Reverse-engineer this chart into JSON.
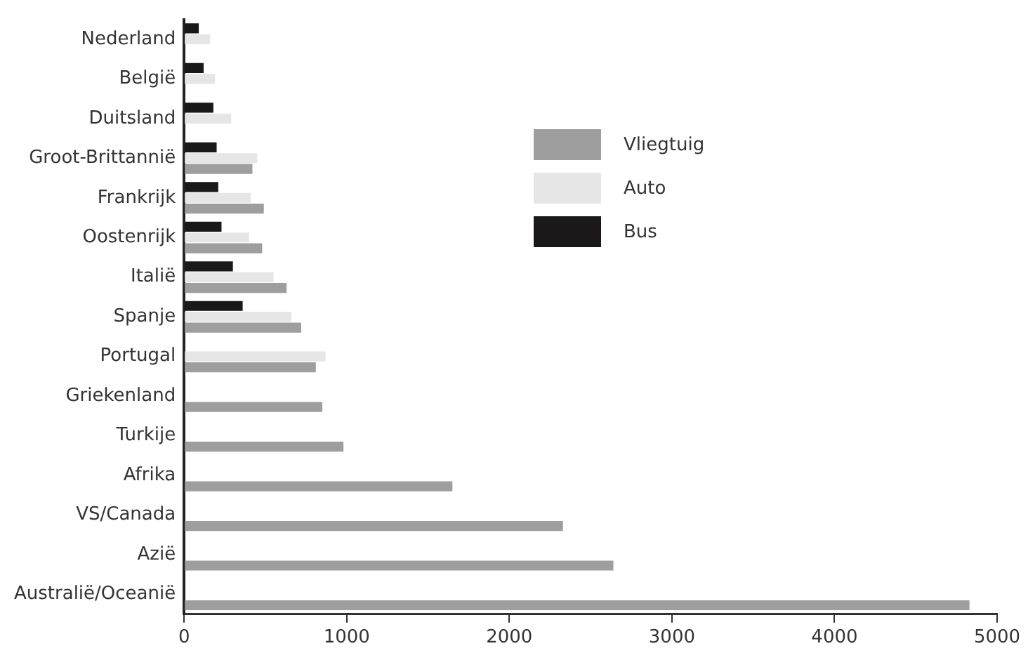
{
  "chart_data": {
    "type": "bar",
    "orientation": "horizontal",
    "categories": [
      "Nederland",
      "België",
      "Duitsland",
      "Groot-Brittannië",
      "Frankrijk",
      "Oostenrijk",
      "Italië",
      "Spanje",
      "Portugal",
      "Griekenland",
      "Turkije",
      "Afrika",
      "VS/Canada",
      "Azië",
      "Australië/Oceanië"
    ],
    "series": [
      {
        "name": "Bus",
        "color": "#1a1818",
        "values": [
          90,
          120,
          180,
          200,
          210,
          230,
          300,
          360,
          null,
          null,
          null,
          null,
          null,
          null,
          null
        ]
      },
      {
        "name": "Auto",
        "color": "#e6e6e6",
        "values": [
          160,
          190,
          290,
          450,
          410,
          400,
          550,
          660,
          870,
          null,
          null,
          null,
          null,
          null,
          null
        ]
      },
      {
        "name": "Vliegtuig",
        "color": "#9e9e9e",
        "values": [
          null,
          null,
          null,
          420,
          490,
          480,
          630,
          720,
          810,
          850,
          980,
          1650,
          2330,
          2640,
          4830
        ]
      }
    ],
    "xlim": [
      0,
      5000
    ],
    "xticks": [
      0,
      1000,
      2000,
      3000,
      4000,
      5000
    ],
    "grid": false,
    "legend": "top"
  }
}
